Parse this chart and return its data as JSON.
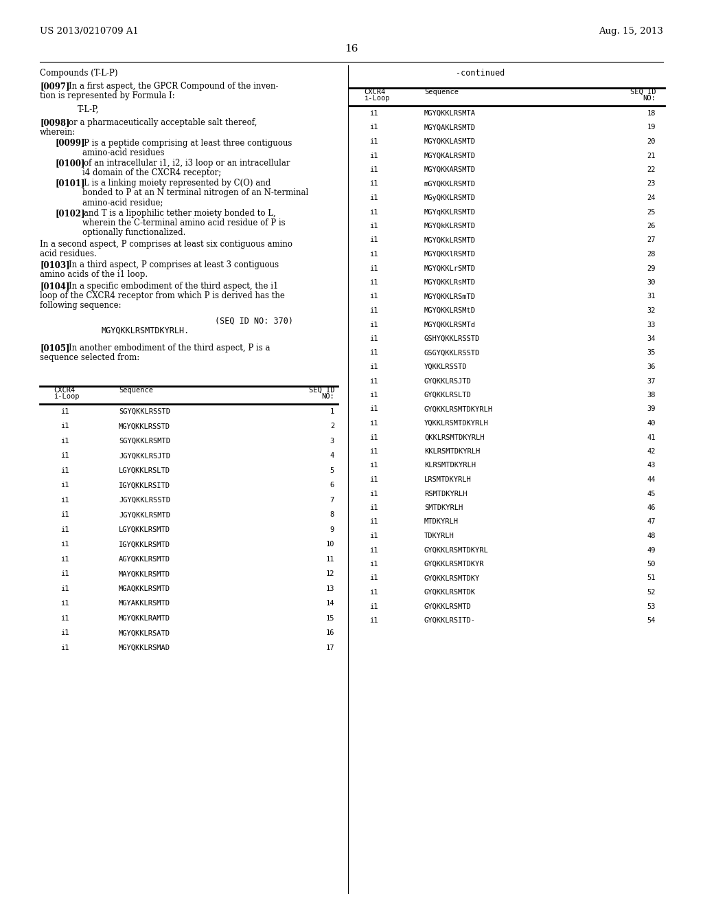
{
  "bg_color": "#ffffff",
  "header_left": "US 2013/0210709 A1",
  "header_right": "Aug. 15, 2013",
  "page_number": "16",
  "section_left_title": "Compounds (T-L-P)",
  "section_right_title": "-continued",
  "left_table_data": [
    [
      "i1",
      "SGYQKKLRSSTD",
      "1"
    ],
    [
      "i1",
      "MGYQKKLRSSTD",
      "2"
    ],
    [
      "i1",
      "SGYQKKLRSMTD",
      "3"
    ],
    [
      "i1",
      "JGYQKKLRSJTD",
      "4"
    ],
    [
      "i1",
      "LGYQKKLRSLTD",
      "5"
    ],
    [
      "i1",
      "IGYQKKLRSITD",
      "6"
    ],
    [
      "i1",
      "JGYQKKLRSSTD",
      "7"
    ],
    [
      "i1",
      "JGYQKKLRSMTD",
      "8"
    ],
    [
      "i1",
      "LGYQKKLRSMTD",
      "9"
    ],
    [
      "i1",
      "IGYQKKLRSMTD",
      "10"
    ],
    [
      "i1",
      "AGYQKKLRSMTD",
      "11"
    ],
    [
      "i1",
      "MAYQKKLRSMTD",
      "12"
    ],
    [
      "i1",
      "MGAQKKLRSMTD",
      "13"
    ],
    [
      "i1",
      "MGYAKKLRSMTD",
      "14"
    ],
    [
      "i1",
      "MGYQKKLRAMTD",
      "15"
    ],
    [
      "i1",
      "MGYQKKLRSATD",
      "16"
    ],
    [
      "i1",
      "MGYQKKLRSMAD",
      "17"
    ]
  ],
  "right_table_data": [
    [
      "i1",
      "MGYQKKLRSMTA",
      "18"
    ],
    [
      "i1",
      "MGYQAKLRSMTD",
      "19"
    ],
    [
      "i1",
      "MGYQKKLASMTD",
      "20"
    ],
    [
      "i1",
      "MGYQKALRSMTD",
      "21"
    ],
    [
      "i1",
      "MGYQKKARSMTD",
      "22"
    ],
    [
      "i1",
      "mGYQKKLRSMTD",
      "23"
    ],
    [
      "i1",
      "MGyQKKLRSMTD",
      "24"
    ],
    [
      "i1",
      "MGYqKKLRSMTD",
      "25"
    ],
    [
      "i1",
      "MGYQkKLRSMTD",
      "26"
    ],
    [
      "i1",
      "MGYQKkLRSMTD",
      "27"
    ],
    [
      "i1",
      "MGYQKKlRSMTD",
      "28"
    ],
    [
      "i1",
      "MGYQKKLrSMTD",
      "29"
    ],
    [
      "i1",
      "MGYQKKLRsMTD",
      "30"
    ],
    [
      "i1",
      "MGYQKKLRSmTD",
      "31"
    ],
    [
      "i1",
      "MGYQKKLRSMtD",
      "32"
    ],
    [
      "i1",
      "MGYQKKLRSMTd",
      "33"
    ],
    [
      "i1",
      "GSHYQKKLRSSTD",
      "34"
    ],
    [
      "i1",
      "GSGYQKKLRSSTD",
      "35"
    ],
    [
      "i1",
      "YQKKLRSSTD",
      "36"
    ],
    [
      "i1",
      "GYQKKLRSJTD",
      "37"
    ],
    [
      "i1",
      "GYQKKLRSLTD",
      "38"
    ],
    [
      "i1",
      "GYQKKLRSMTDKYRLH",
      "39"
    ],
    [
      "i1",
      "YQKKLRSMTDKYRLH",
      "40"
    ],
    [
      "i1",
      "QKKLRSMTDKYRLH",
      "41"
    ],
    [
      "i1",
      "KKLRSMTDKYRLH",
      "42"
    ],
    [
      "i1",
      "KLRSMTDKYRLH",
      "43"
    ],
    [
      "i1",
      "LRSMTDKYRLH",
      "44"
    ],
    [
      "i1",
      "RSMTDKYRLH",
      "45"
    ],
    [
      "i1",
      "SMTDKYRLH",
      "46"
    ],
    [
      "i1",
      "MTDKYRLH",
      "47"
    ],
    [
      "i1",
      "TDKYRLH",
      "48"
    ],
    [
      "i1",
      "GYQKKLRSMTDKYRL",
      "49"
    ],
    [
      "i1",
      "GYQKKLRSMTDKYR",
      "50"
    ],
    [
      "i1",
      "GYQKKLRSMTDKY",
      "51"
    ],
    [
      "i1",
      "GYQKKLRSMTDK",
      "52"
    ],
    [
      "i1",
      "GYQKKLRSMTD",
      "53"
    ],
    [
      "i1",
      "GYQKKLRSITD-",
      "54"
    ]
  ]
}
